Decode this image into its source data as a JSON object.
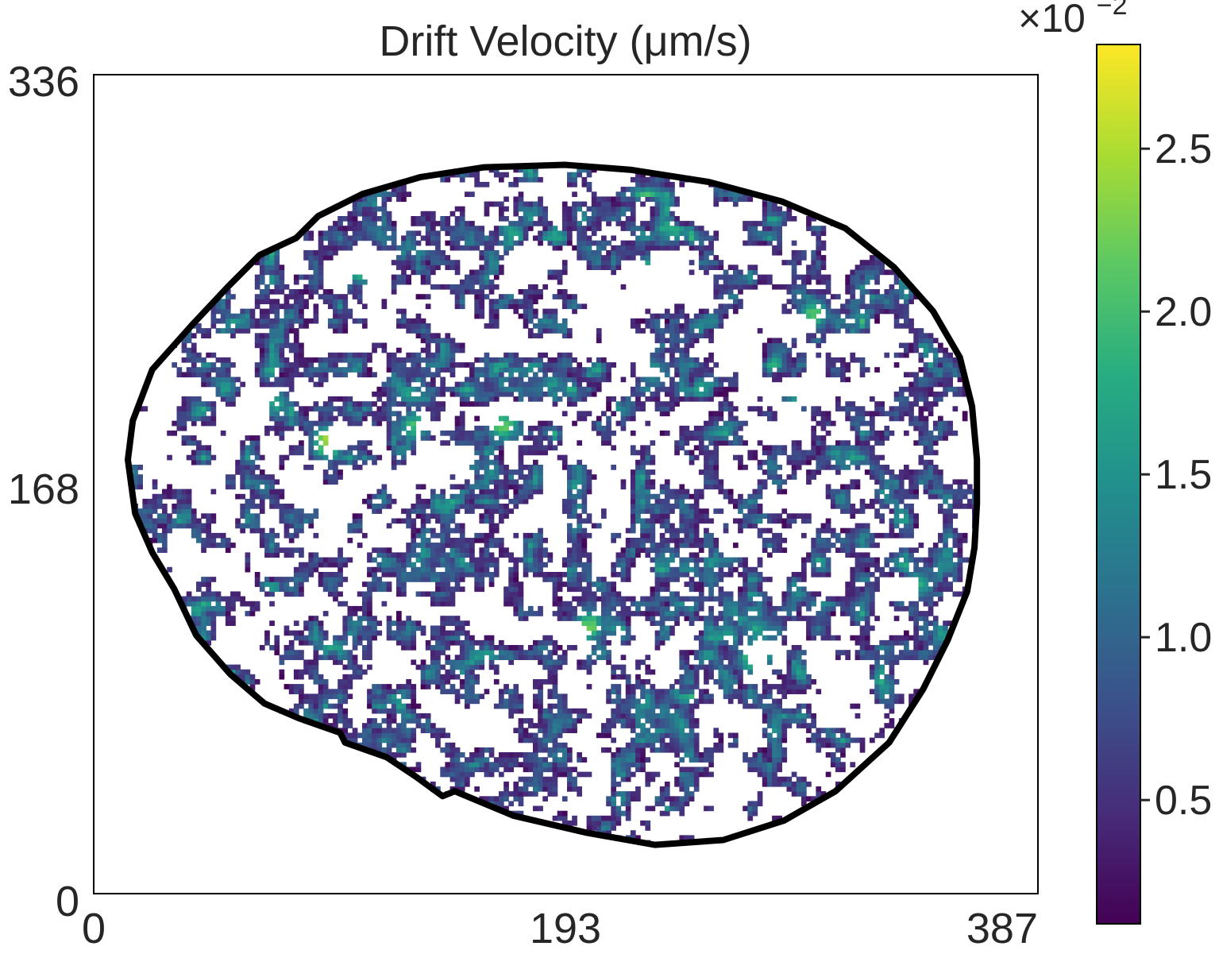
{
  "chart_data": {
    "type": "heatmap",
    "title": "Drift Velocity (μm/s)",
    "xlabel": "",
    "ylabel": "",
    "x_ticks": [
      "0",
      "193",
      "387"
    ],
    "y_ticks": [
      "0",
      "168",
      "336"
    ],
    "xlim": [
      0,
      387
    ],
    "ylim": [
      0,
      336
    ],
    "grid": false,
    "colormap": "viridis",
    "colorbar": {
      "range": [
        0.12,
        2.82
      ],
      "ticks": [
        0.5,
        1.0,
        1.5,
        2.0,
        2.5
      ],
      "tick_labels": [
        "0.5",
        "1.0",
        "1.5",
        "2.0",
        "2.5"
      ],
      "multiplier": "×10",
      "multiplier_exponent": "−2"
    },
    "boundary": [
      [
        193,
        299
      ],
      [
        220,
        297
      ],
      [
        252,
        292
      ],
      [
        282,
        284
      ],
      [
        308,
        273
      ],
      [
        328,
        257
      ],
      [
        344,
        239
      ],
      [
        355,
        220
      ],
      [
        360,
        200
      ],
      [
        362,
        178
      ],
      [
        362,
        160
      ],
      [
        361,
        142
      ],
      [
        358,
        124
      ],
      [
        350,
        104
      ],
      [
        340,
        84
      ],
      [
        326,
        62
      ],
      [
        304,
        42
      ],
      [
        283,
        30
      ],
      [
        258,
        22
      ],
      [
        230,
        20
      ],
      [
        202,
        25
      ],
      [
        172,
        32
      ],
      [
        148,
        42
      ],
      [
        143,
        40
      ],
      [
        132,
        48
      ],
      [
        120,
        56
      ],
      [
        103,
        62
      ],
      [
        101,
        66
      ],
      [
        84,
        72
      ],
      [
        70,
        78
      ],
      [
        56,
        90
      ],
      [
        42,
        106
      ],
      [
        33,
        125
      ],
      [
        24,
        140
      ],
      [
        17,
        156
      ],
      [
        14,
        178
      ],
      [
        16,
        194
      ],
      [
        24,
        215
      ],
      [
        40,
        233
      ],
      [
        55,
        249
      ],
      [
        68,
        262
      ],
      [
        83,
        269
      ],
      [
        92,
        278
      ],
      [
        110,
        287
      ],
      [
        134,
        294
      ],
      [
        160,
        298
      ],
      [
        193,
        299
      ]
    ],
    "hotspots": [
      {
        "x": 110,
        "y": 258,
        "value": 2.75
      },
      {
        "x": 96,
        "y": 185,
        "value": 2.55
      },
      {
        "x": 168,
        "y": 192,
        "value": 2.2
      },
      {
        "x": 131,
        "y": 192,
        "value": 1.95
      },
      {
        "x": 203,
        "y": 110,
        "value": 2.2
      },
      {
        "x": 271,
        "y": 97,
        "value": 2.35
      },
      {
        "x": 75,
        "y": 201,
        "value": 1.6
      },
      {
        "x": 230,
        "y": 214,
        "value": 1.55
      },
      {
        "x": 287,
        "y": 204,
        "value": 1.45
      },
      {
        "x": 39,
        "y": 145,
        "value": 1.25
      },
      {
        "x": 228,
        "y": 255,
        "value": 2.0
      },
      {
        "x": 295,
        "y": 238,
        "value": 2.1
      },
      {
        "x": 338,
        "y": 127,
        "value": 1.75
      },
      {
        "x": 272,
        "y": 108,
        "value": 1.7
      },
      {
        "x": 152,
        "y": 178,
        "value": 1.8
      }
    ]
  }
}
